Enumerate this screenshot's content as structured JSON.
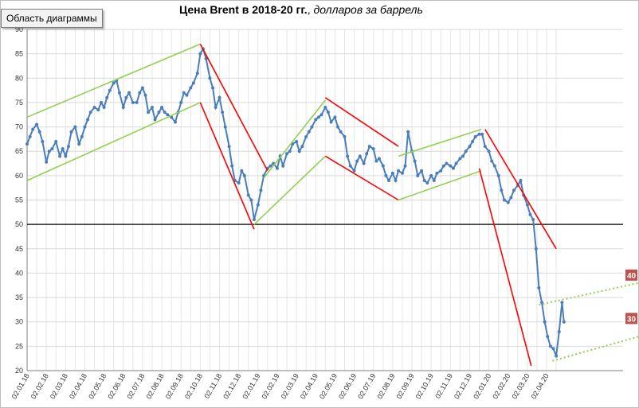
{
  "tooltip": "Область диаграммы",
  "title": {
    "bold": "Цена Brent в 2018-20 гг.",
    "italic": " долларов за баррель"
  },
  "colors": {
    "price": "#4a7ebb",
    "up": "#92d050",
    "down": "#ff0000",
    "grid": "#d9d9d9",
    "label_bg": "#c0504d"
  },
  "chart_data": {
    "type": "line",
    "title": "Цена Brent в 2018-20 гг., долларов за баррель",
    "ylim": [
      20,
      90
    ],
    "yticks": [
      20,
      25,
      30,
      35,
      40,
      45,
      50,
      55,
      60,
      65,
      70,
      75,
      80,
      85,
      90
    ],
    "xticks": [
      "02.01.18",
      "02.02.18",
      "02.03.18",
      "02.04.18",
      "02.05.18",
      "02.06.18",
      "02.07.18",
      "02.08.18",
      "02.09.18",
      "02.10.18",
      "02.11.18",
      "02.12.18",
      "02.01.19",
      "02.02.19",
      "02.03.19",
      "02.04.19",
      "02.05.19",
      "02.06.19",
      "02.07.19",
      "02.08.19",
      "02.09.19",
      "02.10.19",
      "02.11.19",
      "02.12.19",
      "02.01.20",
      "02.02.20",
      "02.03.20",
      "02.04.20"
    ],
    "grid": true,
    "reference_line": 50,
    "series": [
      {
        "values": [
          [
            0,
            66.5
          ],
          [
            0.15,
            68
          ],
          [
            0.3,
            69.5
          ],
          [
            0.5,
            70.5
          ],
          [
            0.65,
            69
          ],
          [
            0.8,
            67
          ],
          [
            1.0,
            62.8
          ],
          [
            1.15,
            65
          ],
          [
            1.3,
            65.5
          ],
          [
            1.5,
            67
          ],
          [
            1.7,
            64
          ],
          [
            1.85,
            65.5
          ],
          [
            2.0,
            64
          ],
          [
            2.15,
            66
          ],
          [
            2.3,
            69
          ],
          [
            2.5,
            70
          ],
          [
            2.7,
            66.5
          ],
          [
            2.85,
            68
          ],
          [
            3.0,
            70
          ],
          [
            3.15,
            71.5
          ],
          [
            3.3,
            73
          ],
          [
            3.5,
            74
          ],
          [
            3.7,
            73.5
          ],
          [
            3.85,
            75
          ],
          [
            4.0,
            74
          ],
          [
            4.15,
            76
          ],
          [
            4.3,
            77.5
          ],
          [
            4.5,
            79
          ],
          [
            4.65,
            79.5
          ],
          [
            4.8,
            77
          ],
          [
            5.0,
            74
          ],
          [
            5.15,
            76
          ],
          [
            5.3,
            77
          ],
          [
            5.5,
            75
          ],
          [
            5.7,
            75
          ],
          [
            5.85,
            77
          ],
          [
            6.0,
            78
          ],
          [
            6.15,
            76.5
          ],
          [
            6.3,
            73
          ],
          [
            6.5,
            74
          ],
          [
            6.65,
            71.5
          ],
          [
            6.85,
            73
          ],
          [
            7.0,
            74
          ],
          [
            7.15,
            73
          ],
          [
            7.3,
            72.5
          ],
          [
            7.5,
            72
          ],
          [
            7.7,
            71
          ],
          [
            7.85,
            73
          ],
          [
            8.0,
            75
          ],
          [
            8.15,
            77
          ],
          [
            8.3,
            76.5
          ],
          [
            8.5,
            78
          ],
          [
            8.65,
            79
          ],
          [
            8.85,
            81
          ],
          [
            9.0,
            85
          ],
          [
            9.15,
            86
          ],
          [
            9.3,
            84
          ],
          [
            9.5,
            80
          ],
          [
            9.65,
            78
          ],
          [
            9.8,
            74
          ],
          [
            10.0,
            76
          ],
          [
            10.15,
            73
          ],
          [
            10.3,
            70
          ],
          [
            10.5,
            66
          ],
          [
            10.65,
            62
          ],
          [
            10.8,
            59
          ],
          [
            11.0,
            58.5
          ],
          [
            11.15,
            61
          ],
          [
            11.3,
            60
          ],
          [
            11.5,
            56
          ],
          [
            11.65,
            55
          ],
          [
            11.8,
            51
          ],
          [
            12.0,
            54
          ],
          [
            12.15,
            57
          ],
          [
            12.3,
            60
          ],
          [
            12.5,
            61.5
          ],
          [
            12.65,
            62
          ],
          [
            12.8,
            62.5
          ],
          [
            13.0,
            61.5
          ],
          [
            13.15,
            64
          ],
          [
            13.3,
            62
          ],
          [
            13.5,
            64.5
          ],
          [
            13.65,
            65
          ],
          [
            13.8,
            66.5
          ],
          [
            14.0,
            67
          ],
          [
            14.15,
            65
          ],
          [
            14.3,
            66
          ],
          [
            14.5,
            68
          ],
          [
            14.65,
            69
          ],
          [
            14.8,
            70
          ],
          [
            15.0,
            71.5
          ],
          [
            15.15,
            72
          ],
          [
            15.3,
            72.5
          ],
          [
            15.5,
            74
          ],
          [
            15.65,
            73
          ],
          [
            15.8,
            71
          ],
          [
            16.0,
            72
          ],
          [
            16.15,
            70
          ],
          [
            16.3,
            69
          ],
          [
            16.5,
            68
          ],
          [
            16.65,
            64
          ],
          [
            16.8,
            62
          ],
          [
            17.0,
            61
          ],
          [
            17.15,
            63
          ],
          [
            17.3,
            64
          ],
          [
            17.5,
            62.5
          ],
          [
            17.65,
            64.5
          ],
          [
            17.8,
            66
          ],
          [
            18.0,
            65.5
          ],
          [
            18.15,
            63
          ],
          [
            18.3,
            63.5
          ],
          [
            18.5,
            62
          ],
          [
            18.65,
            60
          ],
          [
            18.8,
            59
          ],
          [
            19.0,
            60.5
          ],
          [
            19.15,
            59
          ],
          [
            19.3,
            61
          ],
          [
            19.5,
            60.5
          ],
          [
            19.65,
            62
          ],
          [
            19.8,
            69
          ],
          [
            20.0,
            65
          ],
          [
            20.15,
            63
          ],
          [
            20.3,
            60
          ],
          [
            20.5,
            61
          ],
          [
            20.65,
            59
          ],
          [
            20.8,
            58.5
          ],
          [
            21.0,
            60
          ],
          [
            21.15,
            59
          ],
          [
            21.3,
            60.5
          ],
          [
            21.5,
            61
          ],
          [
            21.65,
            62
          ],
          [
            21.8,
            62.5
          ],
          [
            22.0,
            62
          ],
          [
            22.15,
            61.5
          ],
          [
            22.3,
            62.5
          ],
          [
            22.5,
            63.5
          ],
          [
            22.65,
            64
          ],
          [
            22.8,
            65
          ],
          [
            23.0,
            66
          ],
          [
            23.15,
            67
          ],
          [
            23.3,
            68
          ],
          [
            23.5,
            68.5
          ],
          [
            23.65,
            68.5
          ],
          [
            23.8,
            66
          ],
          [
            24.0,
            65
          ],
          [
            24.15,
            63
          ],
          [
            24.3,
            62
          ],
          [
            24.5,
            60
          ],
          [
            24.65,
            57
          ],
          [
            24.8,
            55
          ],
          [
            25.0,
            54.5
          ],
          [
            25.15,
            55.5
          ],
          [
            25.3,
            57
          ],
          [
            25.5,
            58
          ],
          [
            25.65,
            59
          ],
          [
            25.8,
            56
          ],
          [
            26.0,
            54
          ],
          [
            26.15,
            52
          ],
          [
            26.3,
            51
          ],
          [
            26.45,
            45
          ],
          [
            26.6,
            37
          ],
          [
            26.75,
            34
          ],
          [
            26.9,
            30
          ],
          [
            27.05,
            27
          ],
          [
            27.2,
            25
          ],
          [
            27.35,
            24.5
          ],
          [
            27.5,
            23
          ],
          [
            27.65,
            28
          ],
          [
            27.8,
            34
          ],
          [
            27.9,
            30
          ]
        ]
      }
    ],
    "value_labels": [
      "40",
      "30"
    ]
  }
}
